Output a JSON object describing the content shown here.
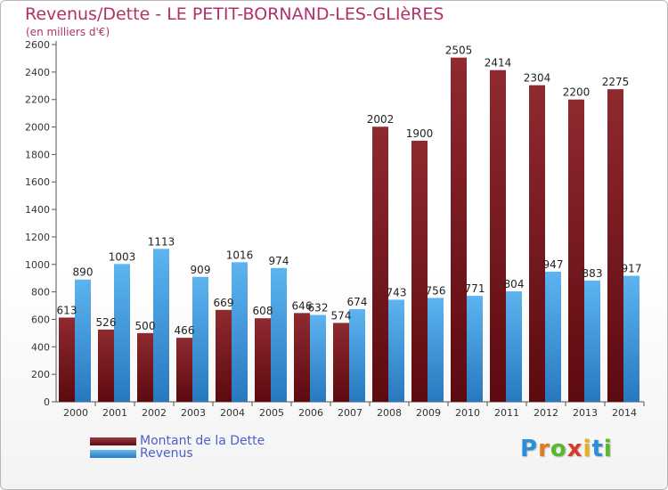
{
  "chart_data": {
    "type": "bar",
    "title": "Revenus/Dette - LE PETIT-BORNAND-LES-GLIèRES",
    "subtitle": "(en milliers d'€)",
    "xlabel": "",
    "ylabel": "",
    "ylim": [
      0,
      2600
    ],
    "yticks": [
      0,
      200,
      400,
      600,
      800,
      1000,
      1200,
      1400,
      1600,
      1800,
      2000,
      2200,
      2400,
      2600
    ],
    "grid": false,
    "legend_position": "bottom-left",
    "categories": [
      "2000",
      "2001",
      "2002",
      "2003",
      "2004",
      "2005",
      "2006",
      "2007",
      "2008",
      "2009",
      "2010",
      "2011",
      "2012",
      "2013",
      "2014"
    ],
    "series": [
      {
        "name": "Montant de la Dette",
        "color": "#7a1c24",
        "values": [
          613,
          526,
          500,
          466,
          669,
          608,
          646,
          574,
          2002,
          1900,
          2505,
          2414,
          2304,
          2200,
          2275
        ]
      },
      {
        "name": "Revenus",
        "color": "#3a96dc",
        "values": [
          890,
          1003,
          1113,
          909,
          1016,
          974,
          632,
          674,
          743,
          756,
          771,
          804,
          947,
          883,
          917
        ]
      }
    ]
  },
  "logo": {
    "letters": [
      "P",
      "r",
      "o",
      "x",
      "i",
      "t",
      "i"
    ],
    "colors": [
      "#2a8fd8",
      "#e07a1a",
      "#58b830",
      "#d83a2a",
      "#e8b020",
      "#2a8fd8",
      "#58b830"
    ]
  }
}
